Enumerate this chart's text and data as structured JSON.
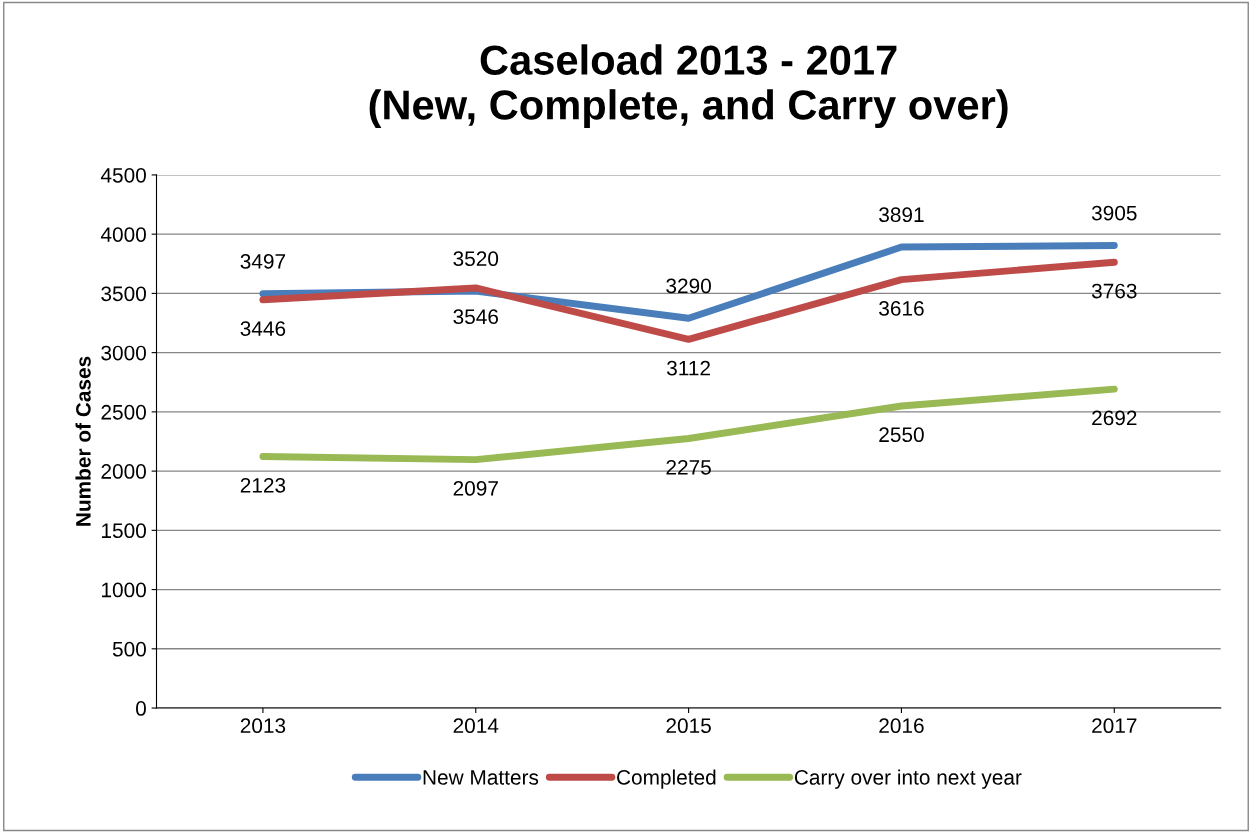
{
  "chart_data": {
    "type": "line",
    "title": "Caseload 2013 - 2017\n(New, Complete, and Carry over)",
    "ylabel": "Number of Cases",
    "categories": [
      "2013",
      "2014",
      "2015",
      "2016",
      "2017"
    ],
    "series": [
      {
        "name": "New Matters",
        "color": "#4a7ebb",
        "values": [
          3497,
          3520,
          3290,
          3891,
          3905
        ]
      },
      {
        "name": "Completed",
        "color": "#be4b48",
        "values": [
          3446,
          3546,
          3112,
          3616,
          3763
        ]
      },
      {
        "name": "Carry over into next year",
        "color": "#98b954",
        "values": [
          2123,
          2097,
          2275,
          2550,
          2692
        ]
      }
    ],
    "ylim": [
      0,
      4500
    ],
    "yticks": [
      0,
      500,
      1000,
      1500,
      2000,
      2500,
      3000,
      3500,
      4000,
      4500
    ],
    "grid": "y",
    "legend": "bottom",
    "data_labels": true,
    "marker": "none",
    "line_style": "solid"
  }
}
